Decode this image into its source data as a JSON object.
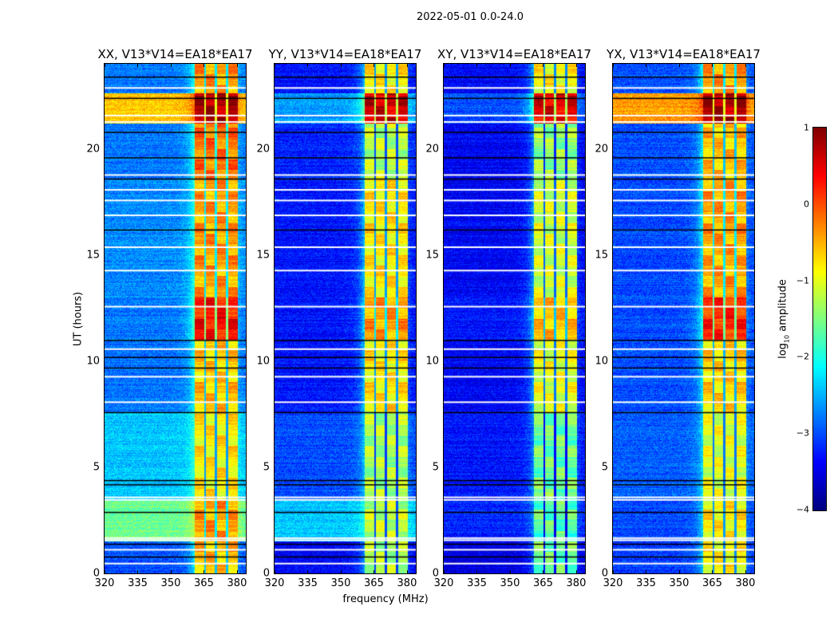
{
  "chart_data": {
    "type": "heatmap",
    "title": "2022-05-01 0.0-24.0",
    "xlabel": "frequency (MHz)",
    "ylabel": "UT (hours)",
    "xlim": [
      320,
      384
    ],
    "ylim": [
      0,
      24
    ],
    "xticks": [
      "320",
      "335",
      "350",
      "365",
      "380"
    ],
    "xtick_values": [
      320,
      335,
      350,
      365,
      380
    ],
    "yticks": [
      "0",
      "5",
      "10",
      "15",
      "20"
    ],
    "ytick_values": [
      0,
      5,
      10,
      15,
      20
    ],
    "colorbar": {
      "label_prefix": "log",
      "label_sub": "10",
      "label_suffix": " amplitude",
      "colormap": "jet",
      "range": [
        -4,
        1
      ],
      "ticks": [
        "1",
        "0",
        "−1",
        "−2",
        "−3",
        "−4"
      ],
      "tick_values": [
        1,
        0,
        -1,
        -2,
        -3,
        -4
      ]
    },
    "band_mhz": [
      360.7,
      380.4
    ],
    "band_gaps_mhz": [
      365.5,
      370.5,
      375.5
    ],
    "flagged_white_hours": [
      0.5,
      1.15,
      1.6,
      1.7,
      3.5,
      3.62,
      8.1,
      9.3,
      10.6,
      12.6,
      14.3,
      15.4,
      16.9,
      17.6,
      18.1,
      18.8,
      21.3,
      21.6,
      22.9
    ],
    "dark_rows_hours": [
      0.8,
      1.4,
      2.9,
      4.2,
      4.4,
      7.6,
      9.7,
      10.2,
      11.0,
      16.2,
      18.6,
      19.6,
      20.8,
      22.4,
      23.4
    ],
    "panels": [
      {
        "title": "XX, V13*V14=EA18*EA17",
        "segments": [
          [
            0,
            1.5,
            -3.0,
            -0.6
          ],
          [
            1.5,
            3.4,
            -1.6,
            -0.4
          ],
          [
            3.4,
            7.6,
            -2.4,
            -0.8
          ],
          [
            7.6,
            11,
            -2.8,
            -0.6
          ],
          [
            11,
            13,
            -2.8,
            0.3
          ],
          [
            13,
            18.6,
            -2.7,
            -0.4
          ],
          [
            18.6,
            21.2,
            -2.8,
            -0.2
          ],
          [
            21.2,
            22.6,
            -0.6,
            0.8
          ],
          [
            22.6,
            24,
            -2.8,
            -0.4
          ]
        ]
      },
      {
        "title": "YY, V13*V14=EA18*EA17",
        "segments": [
          [
            0,
            1.5,
            -3.4,
            -1.3
          ],
          [
            1.5,
            3.4,
            -2.4,
            -1.2
          ],
          [
            3.4,
            7.6,
            -3.0,
            -1.3
          ],
          [
            7.6,
            11,
            -3.3,
            -0.8
          ],
          [
            11,
            13,
            -3.3,
            -0.4
          ],
          [
            13,
            18.6,
            -3.3,
            -0.8
          ],
          [
            18.6,
            21.2,
            -3.2,
            -1.2
          ],
          [
            21.2,
            22.6,
            -2.6,
            0.6
          ],
          [
            22.6,
            24,
            -3.3,
            -0.8
          ]
        ]
      },
      {
        "title": "XY, V13*V14=EA18*EA17",
        "segments": [
          [
            0,
            1.5,
            -3.5,
            -1.6
          ],
          [
            1.5,
            3.4,
            -3.2,
            -1.7
          ],
          [
            3.4,
            7.6,
            -3.3,
            -1.6
          ],
          [
            7.6,
            11,
            -3.4,
            -1.0
          ],
          [
            11,
            13,
            -3.3,
            -0.6
          ],
          [
            13,
            18.6,
            -3.4,
            -1.1
          ],
          [
            18.6,
            21.2,
            -3.4,
            -1.4
          ],
          [
            21.2,
            22.6,
            -3.0,
            0.5
          ],
          [
            22.6,
            24,
            -3.4,
            -0.9
          ]
        ]
      },
      {
        "title": "YX, V13*V14=EA18*EA17",
        "segments": [
          [
            0,
            1.5,
            -3.1,
            -0.9
          ],
          [
            1.5,
            3.4,
            -3.0,
            -0.8
          ],
          [
            3.4,
            7.6,
            -2.9,
            -1.0
          ],
          [
            7.6,
            11,
            -3.0,
            -0.7
          ],
          [
            11,
            13,
            -3.0,
            0.2
          ],
          [
            13,
            18.6,
            -3.0,
            -0.4
          ],
          [
            18.6,
            21.2,
            -3.0,
            -0.6
          ],
          [
            21.2,
            22.6,
            -0.4,
            0.8
          ],
          [
            22.6,
            24,
            -3.0,
            -0.4
          ]
        ]
      }
    ]
  }
}
